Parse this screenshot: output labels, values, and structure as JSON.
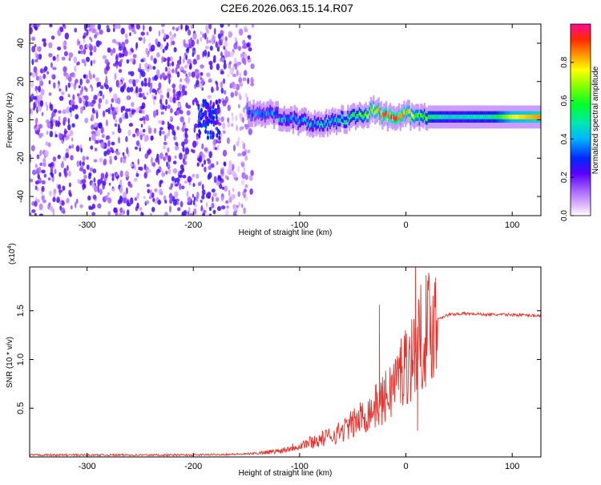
{
  "title": "C2E6.2026.063.15.14.R07",
  "chart_data": [
    {
      "type": "heatmap",
      "xlabel": "Height of straight line (km)",
      "ylabel": "Frequency (Hz)",
      "xlim": [
        -354,
        127
      ],
      "ylim": [
        -50,
        50
      ],
      "xticks": [
        -300,
        -200,
        -100,
        0,
        100
      ],
      "yticks": [
        -40,
        -20,
        0,
        20,
        40
      ],
      "colorbar": {
        "label": "Normalized spectral amplitude",
        "range": [
          0,
          1
        ],
        "ticks": [
          0.0,
          0.2,
          0.4,
          0.6,
          0.8
        ]
      },
      "ridge": [
        {
          "x": -150,
          "f": 4.0,
          "a": 0.3
        },
        {
          "x": -130,
          "f": 3.0,
          "a": 0.35
        },
        {
          "x": -115,
          "f": 1.5,
          "a": 0.38
        },
        {
          "x": -100,
          "f": -1.0,
          "a": 0.4
        },
        {
          "x": -85,
          "f": -2.0,
          "a": 0.42
        },
        {
          "x": -70,
          "f": -1.0,
          "a": 0.45
        },
        {
          "x": -55,
          "f": 0.5,
          "a": 0.5
        },
        {
          "x": -40,
          "f": 3.0,
          "a": 0.6
        },
        {
          "x": -30,
          "f": 5.0,
          "a": 0.75
        },
        {
          "x": -20,
          "f": 2.0,
          "a": 0.85
        },
        {
          "x": -10,
          "f": 0.0,
          "a": 0.9
        },
        {
          "x": 0,
          "f": 3.0,
          "a": 0.75
        },
        {
          "x": 10,
          "f": 1.0,
          "a": 0.65
        },
        {
          "x": 20,
          "f": 1.5,
          "a": 0.55
        },
        {
          "x": 40,
          "f": 1.5,
          "a": 0.45
        },
        {
          "x": 80,
          "f": 1.5,
          "a": 0.5
        },
        {
          "x": 100,
          "f": 1.5,
          "a": 0.75
        },
        {
          "x": 127,
          "f": 1.5,
          "a": 0.85
        }
      ]
    },
    {
      "type": "line",
      "xlabel": "Height of straight line (km)",
      "ylabel": "SNR (10 * v/v)",
      "multiplier_label": "(x10",
      "multiplier_exp": "4",
      "multiplier_close": ")",
      "xlim": [
        -354,
        127
      ],
      "ylim": [
        0,
        1.95
      ],
      "xticks": [
        -300,
        -200,
        -100,
        0,
        100
      ],
      "yticks": [
        0.5,
        1.0,
        1.5
      ],
      "ytick_labels": [
        "0.5",
        "1.0",
        "1.5"
      ],
      "series": [
        {
          "name": "SNR",
          "color": "#e8302a",
          "x": [
            -354,
            -200,
            -150,
            -120,
            -110,
            -100,
            -90,
            -80,
            -70,
            -60,
            -50,
            -40,
            -30,
            -25,
            -20,
            -15,
            -10,
            -5,
            0,
            5,
            8,
            10,
            15,
            20,
            25,
            30,
            40,
            50,
            60,
            80,
            100,
            127
          ],
          "y": [
            0.02,
            0.02,
            0.03,
            0.06,
            0.09,
            0.12,
            0.15,
            0.18,
            0.22,
            0.27,
            0.34,
            0.42,
            0.5,
            0.55,
            0.6,
            0.68,
            0.78,
            0.88,
            0.96,
            1.02,
            1.05,
            1.12,
            1.25,
            1.32,
            1.38,
            1.42,
            1.46,
            1.47,
            1.47,
            1.46,
            1.46,
            1.45
          ]
        }
      ],
      "spikes": [
        {
          "x": -25,
          "y": 1.56
        },
        {
          "x": 9,
          "y": 1.95
        },
        {
          "x": 11,
          "y": 0.27
        }
      ]
    }
  ]
}
